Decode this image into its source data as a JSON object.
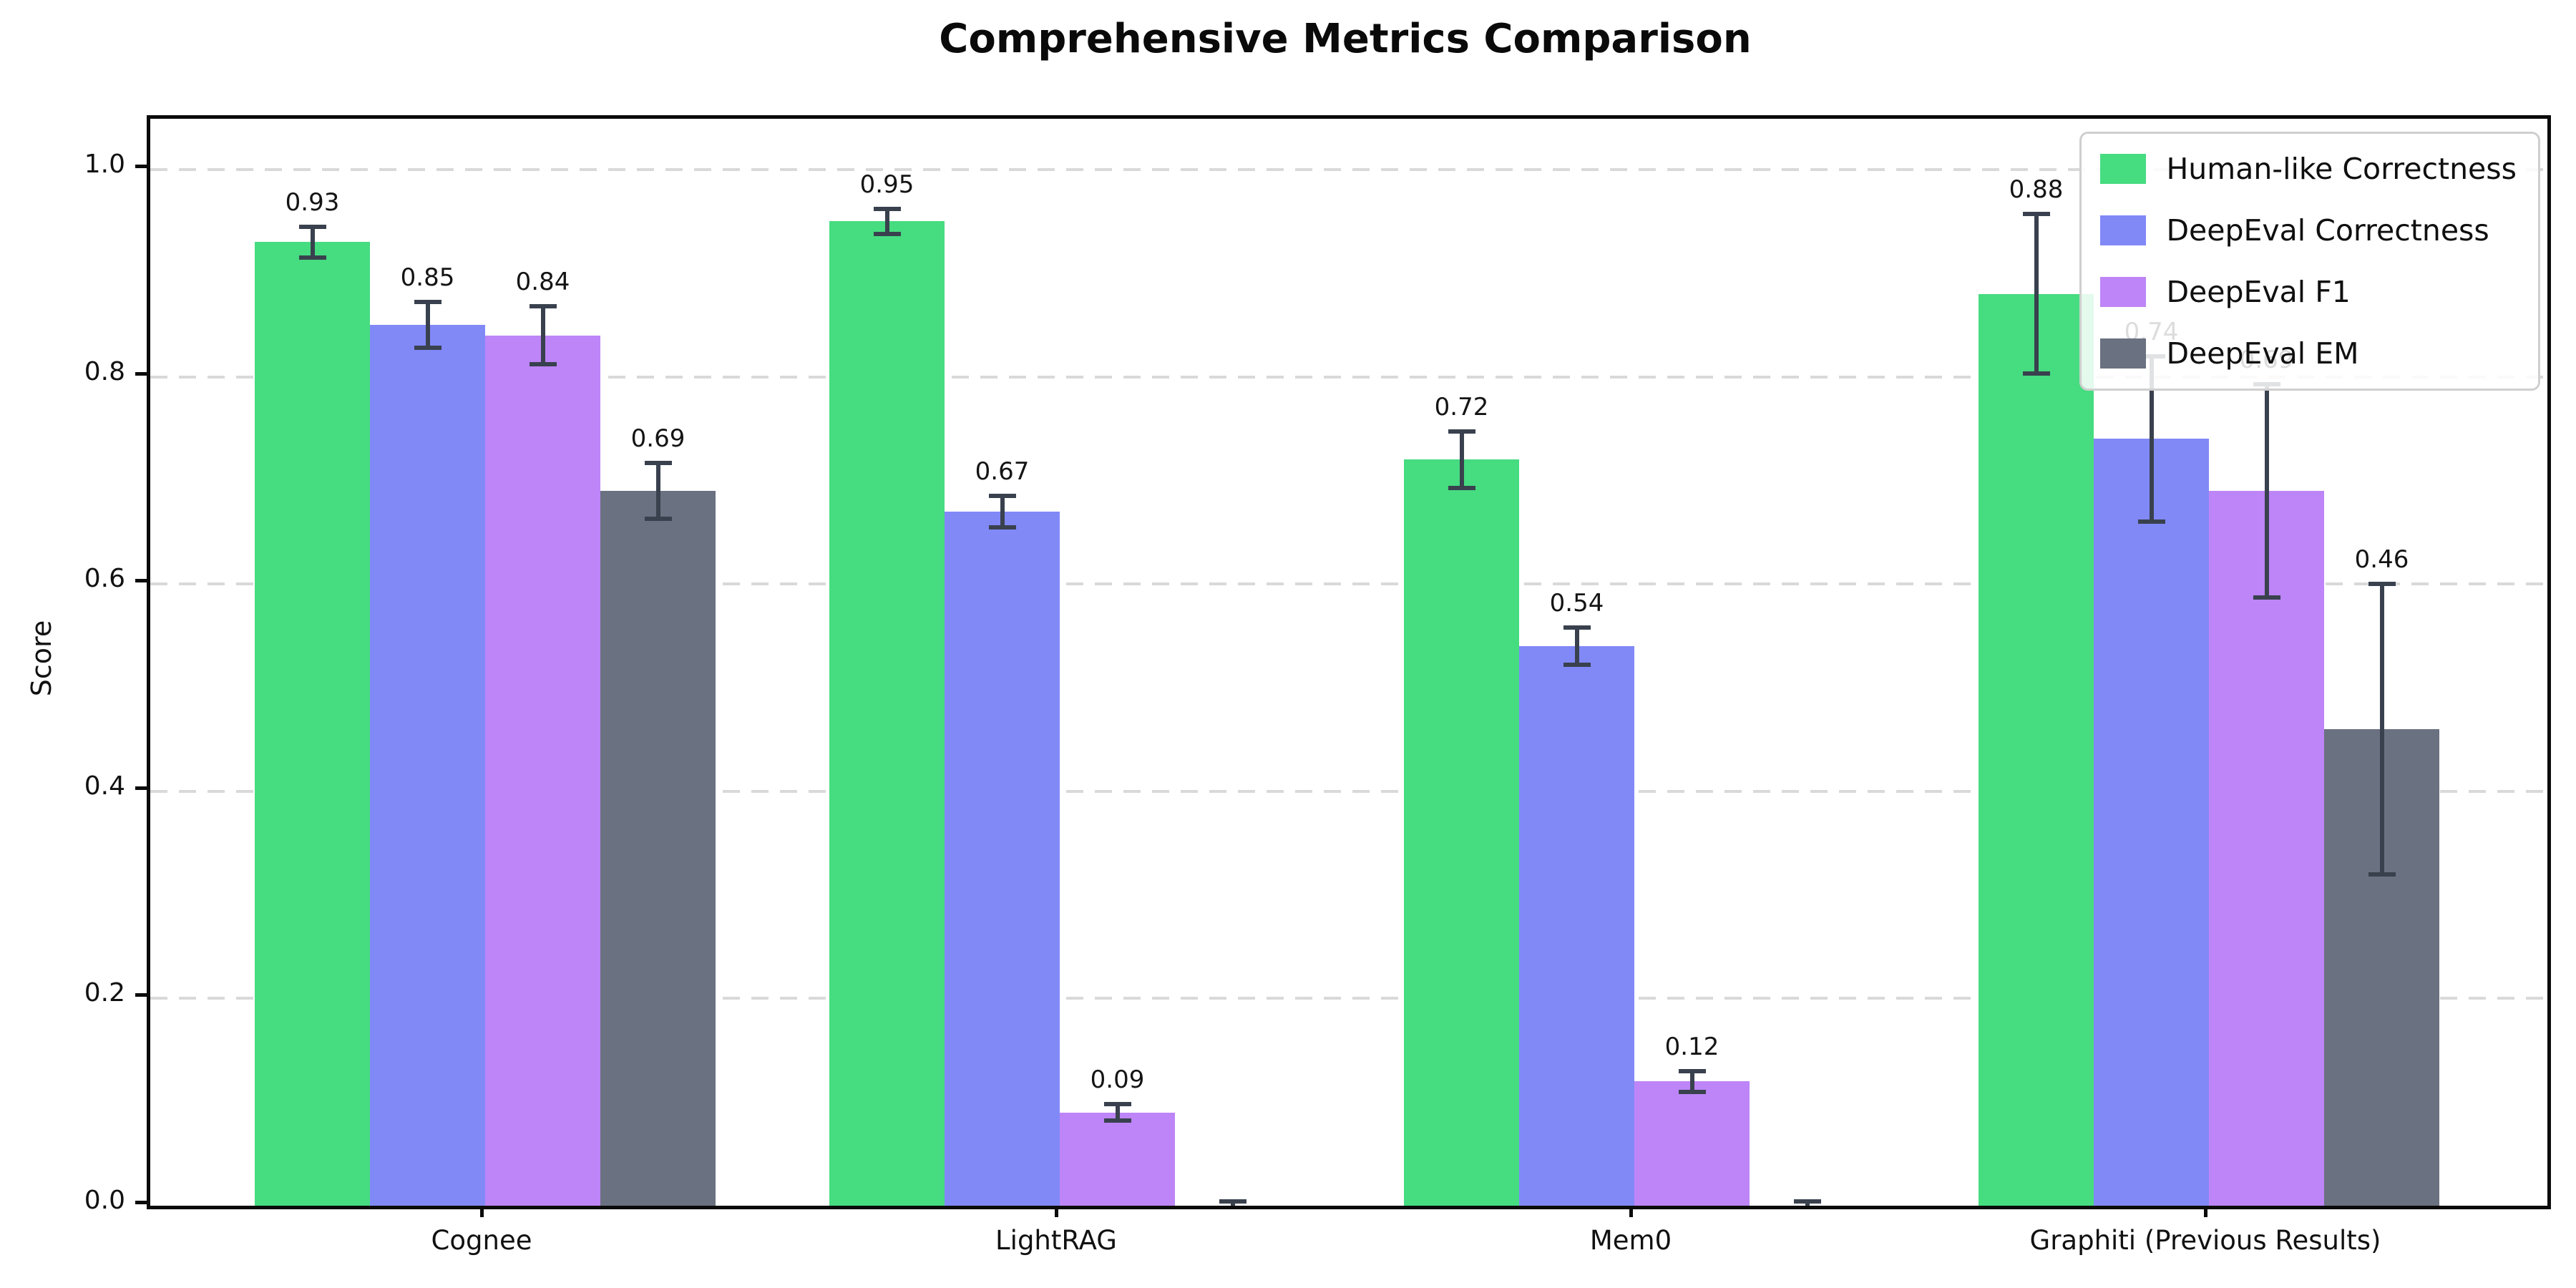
{
  "chart_data": {
    "type": "bar",
    "title": "Comprehensive Metrics Comparison",
    "xlabel": "",
    "ylabel": "Score",
    "categories": [
      "Cognee",
      "LightRAG",
      "Mem0",
      "Graphiti (Previous Results)"
    ],
    "series": [
      {
        "name": "Human-like Correctness",
        "color": "#46dc80",
        "values": [
          0.93,
          0.95,
          0.72,
          0.88
        ],
        "errors": [
          0.015,
          0.012,
          0.027,
          0.077
        ],
        "value_labels": [
          "0.93",
          "0.95",
          "0.72",
          "0.88"
        ]
      },
      {
        "name": "DeepEval Correctness",
        "color": "#8189f7",
        "values": [
          0.85,
          0.67,
          0.54,
          0.74
        ],
        "errors": [
          0.022,
          0.015,
          0.018,
          0.08
        ],
        "value_labels": [
          "0.85",
          "0.67",
          "0.54",
          "0.74"
        ]
      },
      {
        "name": "DeepEval F1",
        "color": "#bd85f7",
        "values": [
          0.84,
          0.09,
          0.12,
          0.69
        ],
        "errors": [
          0.028,
          0.008,
          0.01,
          0.103
        ],
        "value_labels": [
          "0.84",
          "0.09",
          "0.12",
          "0.69"
        ]
      },
      {
        "name": "DeepEval EM",
        "color": "#6a7180",
        "values": [
          0.69,
          0.0,
          0.0,
          0.46
        ],
        "errors": [
          0.027,
          0.004,
          0.004,
          0.14
        ],
        "value_labels": [
          "0.69",
          "",
          "",
          "0.46"
        ]
      }
    ],
    "yticks": [
      "0.0",
      "0.2",
      "0.4",
      "0.6",
      "0.8",
      "1.0"
    ],
    "ylim": [
      0,
      1.049
    ],
    "grid": {
      "axis": "y",
      "style": "dashed",
      "color": "#d9d9d9"
    },
    "legend_position": "upper right",
    "error_bar_color": "#39414e",
    "axis_color": "#0b0b0b"
  }
}
